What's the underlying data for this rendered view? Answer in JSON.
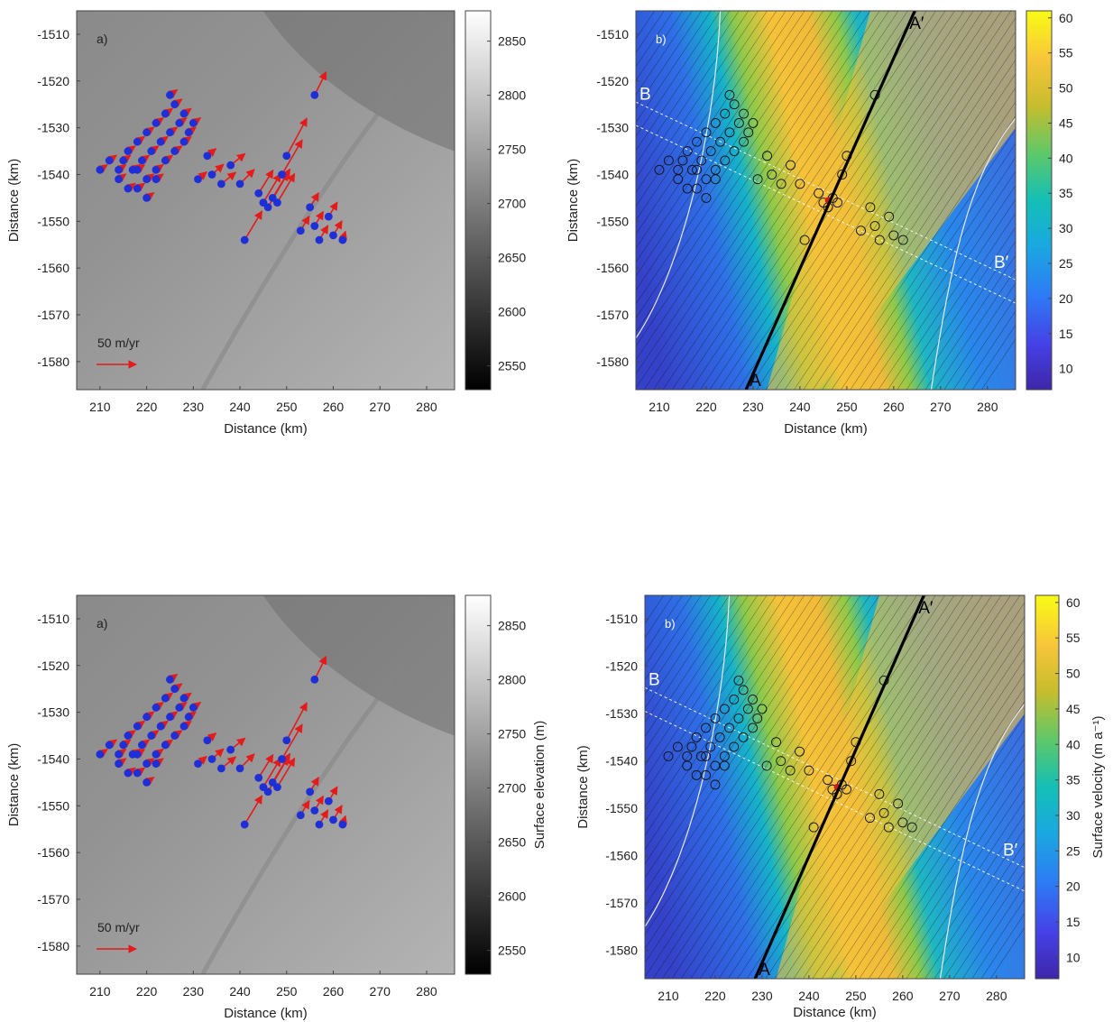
{
  "chart_data": [
    {
      "type": "scatter",
      "panel_label": "a)",
      "xlabel": "Distance (km)",
      "ylabel": "Distance (km)",
      "xlim": [
        205,
        286
      ],
      "ylim": [
        -1586,
        -1505
      ],
      "xticks": [
        210,
        220,
        230,
        240,
        250,
        260,
        270,
        280
      ],
      "yticks": [
        -1510,
        -1520,
        -1530,
        -1540,
        -1550,
        -1560,
        -1570,
        -1580
      ],
      "colorbar": {
        "colormap": "gray",
        "range": [
          2528,
          2878
        ],
        "ticks": [
          2550,
          2600,
          2650,
          2700,
          2750,
          2800,
          2850
        ],
        "label": ""
      },
      "scale_arrow_label": "50 m/yr",
      "marker_color": "#1f2fd8",
      "arrow_color": "#e51b1b"
    },
    {
      "type": "heatmap",
      "panel_label": "b)",
      "xlabel": "Distance (km)",
      "ylabel": "Distance (km)",
      "xlim": [
        205,
        286
      ],
      "ylim": [
        -1586,
        -1505
      ],
      "xticks": [
        210,
        220,
        230,
        240,
        250,
        260,
        270,
        280
      ],
      "yticks": [
        -1510,
        -1520,
        -1530,
        -1540,
        -1550,
        -1560,
        -1570,
        -1580
      ],
      "colorbar": {
        "colormap": "parula",
        "range": [
          7,
          61
        ],
        "ticks": [
          10,
          15,
          20,
          25,
          30,
          35,
          40,
          45,
          50,
          55,
          60
        ],
        "label": ""
      },
      "profile_labels": {
        "a": "A",
        "a_prime": "A′",
        "b": "B",
        "b_prime": "B′"
      },
      "profile_AA": {
        "x": [
          228.5,
          264.5
        ],
        "y": [
          -1586,
          -1505
        ]
      },
      "profile_BB": {
        "x": [
          205,
          286
        ],
        "y": [
          -1527,
          -1565
        ]
      }
    },
    {
      "type": "scatter",
      "panel_label": "a)",
      "xlabel": "Distance (km)",
      "ylabel": "Distance (km)",
      "xlim": [
        205,
        286
      ],
      "ylim": [
        -1586,
        -1505
      ],
      "xticks": [
        210,
        220,
        230,
        240,
        250,
        260,
        270,
        280
      ],
      "yticks": [
        -1510,
        -1520,
        -1530,
        -1540,
        -1550,
        -1560,
        -1570,
        -1580
      ],
      "colorbar": {
        "colormap": "gray",
        "range": [
          2528,
          2878
        ],
        "ticks": [
          2550,
          2600,
          2650,
          2700,
          2750,
          2800,
          2850
        ],
        "label": "Surface elevation (m)"
      },
      "scale_arrow_label": "50 m/yr",
      "marker_color": "#1f2fd8",
      "arrow_color": "#e51b1b"
    },
    {
      "type": "heatmap",
      "panel_label": "b)",
      "xlabel": "Distance (km)",
      "ylabel": "Distance (km)",
      "xlim": [
        205,
        286
      ],
      "ylim": [
        -1586,
        -1505
      ],
      "xticks": [
        210,
        220,
        230,
        240,
        250,
        260,
        270,
        280
      ],
      "yticks": [
        -1510,
        -1520,
        -1530,
        -1540,
        -1550,
        -1560,
        -1570,
        -1580
      ],
      "colorbar": {
        "colormap": "parula",
        "range": [
          7,
          61
        ],
        "ticks": [
          10,
          15,
          20,
          25,
          30,
          35,
          40,
          45,
          50,
          55,
          60
        ],
        "label": "Surface velocity (m a⁻¹)"
      },
      "profile_labels": {
        "a": "A",
        "a_prime": "A′",
        "b": "B",
        "b_prime": "B′"
      },
      "profile_AA": {
        "x": [
          228.5,
          264.5
        ],
        "y": [
          -1586,
          -1505
        ]
      },
      "profile_BB": {
        "x": [
          205,
          286
        ],
        "y": [
          -1527,
          -1565
        ]
      }
    }
  ],
  "stations": [
    [
      210,
      -1539,
      2.5,
      1.8
    ],
    [
      212,
      -1537,
      2.5,
      1.8
    ],
    [
      214,
      -1541,
      2.5,
      1.8
    ],
    [
      215,
      -1537,
      2.5,
      1.8
    ],
    [
      216,
      -1535,
      2.5,
      1.8
    ],
    [
      217,
      -1539,
      2.5,
      1.8
    ],
    [
      218,
      -1543,
      2.5,
      1.8
    ],
    [
      218,
      -1533,
      2.5,
      1.8
    ],
    [
      219,
      -1537,
      2.5,
      1.8
    ],
    [
      220,
      -1541,
      2.5,
      1.8
    ],
    [
      220,
      -1531,
      2.5,
      1.8
    ],
    [
      221,
      -1535,
      2.5,
      1.8
    ],
    [
      222,
      -1539,
      2.5,
      1.8
    ],
    [
      222,
      -1529,
      2.5,
      1.8
    ],
    [
      223,
      -1533,
      2.5,
      1.8
    ],
    [
      224,
      -1537,
      2.5,
      1.8
    ],
    [
      224,
      -1527,
      2.5,
      1.8
    ],
    [
      225,
      -1531,
      2.5,
      1.8
    ],
    [
      226,
      -1535,
      2.5,
      1.8
    ],
    [
      226,
      -1525,
      2.5,
      1.8
    ],
    [
      227,
      -1529,
      2.5,
      1.8
    ],
    [
      228,
      -1533,
      2.5,
      1.8
    ],
    [
      229,
      -1531,
      2.5,
      1.8
    ],
    [
      228,
      -1527,
      2.5,
      1.8
    ],
    [
      230,
      -1529,
      2.5,
      1.8
    ],
    [
      225,
      -1523,
      2.5,
      1.8
    ],
    [
      216,
      -1543,
      2.5,
      1.8
    ],
    [
      218,
      -1539,
      2.5,
      1.8
    ],
    [
      220,
      -1545,
      2.5,
      1.8
    ],
    [
      222,
      -1541,
      2.5,
      1.8
    ],
    [
      214,
      -1539,
      2.5,
      1.8
    ],
    [
      231,
      -1541,
      3,
      2.5
    ],
    [
      233,
      -1536,
      3,
      2.5
    ],
    [
      234,
      -1540,
      4,
      3.5
    ],
    [
      236,
      -1542,
      5,
      4
    ],
    [
      238,
      -1538,
      5,
      4
    ],
    [
      240,
      -1542,
      5,
      5
    ],
    [
      241,
      -1554,
      6,
      10
    ],
    [
      244,
      -1544,
      5,
      8
    ],
    [
      245,
      -1546,
      6,
      10
    ],
    [
      246,
      -1547,
      7,
      12
    ],
    [
      247,
      -1545,
      6,
      10
    ],
    [
      248,
      -1546,
      6,
      10
    ],
    [
      249,
      -1540,
      7,
      12
    ],
    [
      250,
      -1536,
      7,
      13
    ],
    [
      256,
      -1523,
      4,
      8
    ],
    [
      253,
      -1552,
      3,
      5
    ],
    [
      255,
      -1547,
      3,
      5
    ],
    [
      256,
      -1551,
      3,
      5
    ],
    [
      257,
      -1554,
      3,
      5
    ],
    [
      259,
      -1549,
      3,
      5
    ],
    [
      260,
      -1553,
      3,
      5
    ],
    [
      262,
      -1554,
      1,
      3
    ]
  ]
}
